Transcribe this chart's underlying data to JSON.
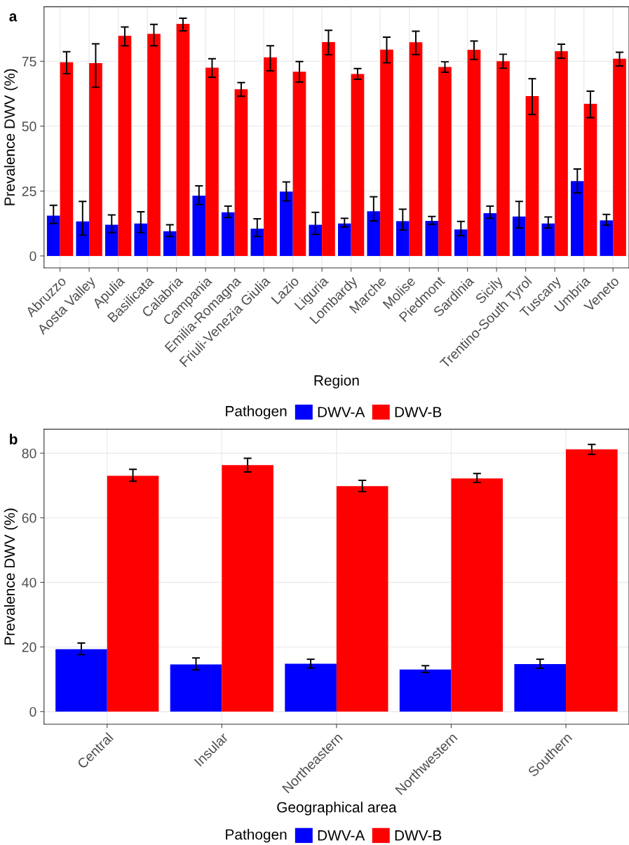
{
  "chart_data": [
    {
      "type": "bar",
      "title": "a",
      "xlabel": "Region",
      "ylabel": "Prevalence DWV (%)",
      "legend_title": "Pathogen",
      "legend": "bottom",
      "grid": true,
      "categories": [
        "Abruzzo",
        "Aosta Valley",
        "Apulia",
        "Basilicata",
        "Calabria",
        "Campania",
        "Emilia-Romagna",
        "Friuli-Venezia Giulia",
        "Lazio",
        "Liguria",
        "Lombardy",
        "Marche",
        "Molise",
        "Piedmont",
        "Sardinia",
        "Sicily",
        "Trentino-South Tyrol",
        "Tuscany",
        "Umbria",
        "Veneto"
      ],
      "ylim": [
        -4.6,
        96
      ],
      "yticks": [
        0,
        25,
        50,
        75
      ],
      "series": [
        {
          "name": "DWV-A",
          "color": "#0000ff",
          "values": [
            15.5,
            13.3,
            12,
            12.5,
            9.5,
            23.2,
            16.8,
            10.5,
            24.8,
            12,
            12.5,
            17.2,
            13.4,
            13.5,
            10.2,
            16.5,
            15.2,
            12.5,
            28.8,
            13.7
          ],
          "errors": [
            [
              12.5,
              19.5
            ],
            [
              8,
              21
            ],
            [
              9,
              15.8
            ],
            [
              9,
              17
            ],
            [
              7.5,
              12
            ],
            [
              19.8,
              27
            ],
            [
              14.8,
              19.2
            ],
            [
              7.5,
              14.3
            ],
            [
              21.2,
              28.5
            ],
            [
              8.3,
              16.8
            ],
            [
              11.2,
              14.5
            ],
            [
              13.5,
              22.8
            ],
            [
              10,
              18
            ],
            [
              12.2,
              15.2
            ],
            [
              7.8,
              13.3
            ],
            [
              14.5,
              19.2
            ],
            [
              10.8,
              21
            ],
            [
              10.8,
              15
            ],
            [
              24.3,
              33.5
            ],
            [
              11.8,
              16
            ]
          ]
        },
        {
          "name": "DWV-B",
          "color": "#ff0000",
          "values": [
            74.6,
            74.3,
            84.8,
            85.6,
            89.4,
            72.5,
            64.2,
            76.5,
            71,
            82.4,
            70.1,
            79.5,
            82.3,
            72.8,
            79.4,
            75,
            61.6,
            78.9,
            58.6,
            76
          ],
          "errors": [
            [
              70.2,
              78.7
            ],
            [
              65,
              81.7
            ],
            [
              81,
              88.2
            ],
            [
              81,
              89.2
            ],
            [
              86.7,
              91.6
            ],
            [
              68.8,
              76
            ],
            [
              61.5,
              66.8
            ],
            [
              71.3,
              81
            ],
            [
              67,
              74.9
            ],
            [
              77.5,
              86.9
            ],
            [
              68.1,
              72.2
            ],
            [
              74.4,
              84.3
            ],
            [
              77.6,
              86.6
            ],
            [
              70.8,
              74.8
            ],
            [
              75.7,
              82.8
            ],
            [
              72.3,
              77.7
            ],
            [
              54.5,
              68.3
            ],
            [
              76.2,
              81.6
            ],
            [
              53.3,
              63.5
            ],
            [
              73.2,
              78.5
            ]
          ]
        }
      ]
    },
    {
      "type": "bar",
      "title": "b",
      "xlabel": "Geographical area",
      "ylabel": "Prevalence DWV (%)",
      "legend_title": "Pathogen",
      "legend": "bottom",
      "grid": true,
      "categories": [
        "Central",
        "Insular",
        "Northeastern",
        "Northwestern",
        "Southern"
      ],
      "ylim": [
        -3.9,
        87.4
      ],
      "yticks": [
        0,
        20,
        40,
        60,
        80
      ],
      "series": [
        {
          "name": "DWV-A",
          "color": "#0000ff",
          "values": [
            19.3,
            14.6,
            14.8,
            13,
            14.7
          ],
          "errors": [
            [
              17.6,
              21.2
            ],
            [
              12.9,
              16.6
            ],
            [
              13.5,
              16.2
            ],
            [
              12.1,
              14.2
            ],
            [
              13.4,
              16.2
            ]
          ]
        },
        {
          "name": "DWV-B",
          "color": "#ff0000",
          "values": [
            73,
            76.3,
            69.8,
            72.2,
            81.2
          ],
          "errors": [
            [
              71.3,
              75
            ],
            [
              74.2,
              78.4
            ],
            [
              68.1,
              71.6
            ],
            [
              70.9,
              73.7
            ],
            [
              79.6,
              82.7
            ]
          ]
        }
      ]
    }
  ]
}
